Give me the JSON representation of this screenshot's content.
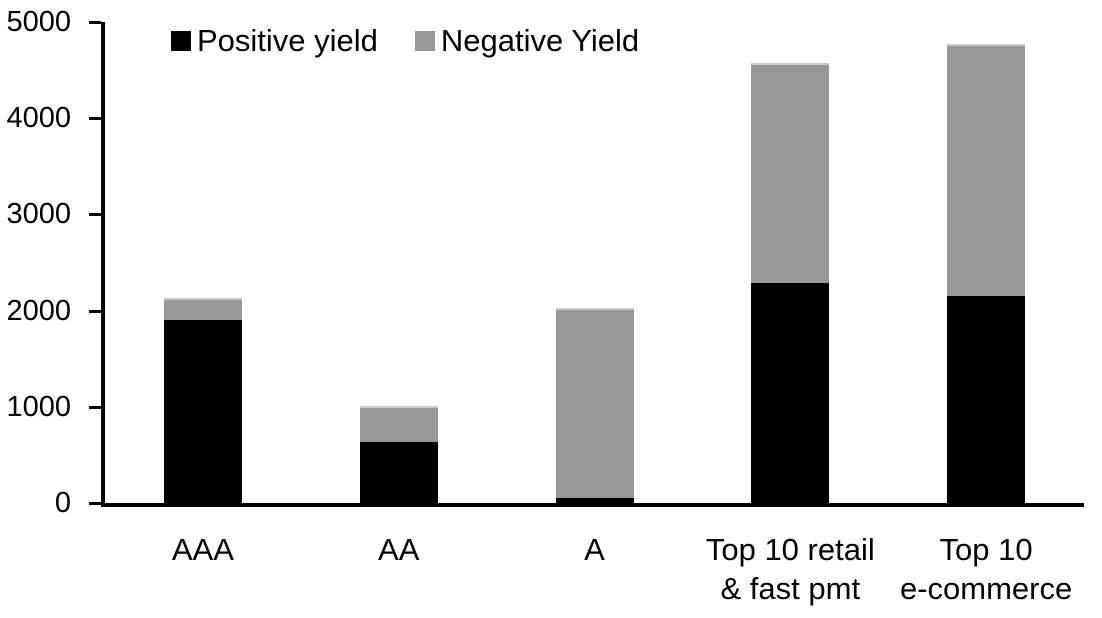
{
  "chart_data": {
    "type": "bar",
    "stacked": true,
    "title": "",
    "xlabel": "",
    "ylabel": "",
    "categories": [
      "AAA",
      "AA",
      "A",
      "Top 10 retail\n& fast pmt",
      "Top 10\ne-commerce"
    ],
    "series": [
      {
        "name": "Positive yield",
        "color": "#000000",
        "values": [
          1900,
          630,
          50,
          2290,
          2150
        ]
      },
      {
        "name": "Negative Yield",
        "color": "#989898",
        "values": [
          230,
          380,
          1980,
          2280,
          2620
        ]
      }
    ],
    "ylim": [
      0,
      5000
    ],
    "yticks": [
      0,
      1000,
      2000,
      3000,
      4000,
      5000
    ],
    "grid": false,
    "legend_position": "top"
  }
}
